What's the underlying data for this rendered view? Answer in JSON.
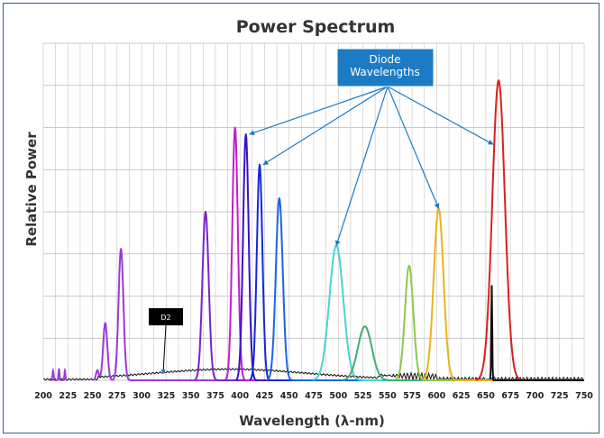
{
  "chart_data": {
    "type": "line",
    "title": "Power Spectrum",
    "xlabel": "Wavelength (λ-nm)",
    "ylabel": "Relative Power",
    "xlim": [
      200,
      750
    ],
    "ylim": [
      0,
      1
    ],
    "grid": true,
    "x_ticks": [
      200,
      225,
      250,
      275,
      300,
      325,
      350,
      375,
      400,
      425,
      450,
      475,
      500,
      525,
      550,
      575,
      600,
      625,
      650,
      675,
      700,
      725,
      750
    ],
    "annotations": {
      "callout": "Diode Wavelengths",
      "d2_label": "D2"
    },
    "series": [
      {
        "color": "#9a3ad6",
        "peaks": [
          {
            "x": 263,
            "y": 0.17,
            "w": 3
          },
          {
            "x": 279,
            "y": 0.39,
            "w": 3.5
          },
          {
            "x": 255,
            "y": 0.03,
            "w": 2
          }
        ]
      },
      {
        "color": "#7a22cc",
        "peaks": [
          {
            "x": 365,
            "y": 0.5,
            "w": 4.5
          }
        ]
      },
      {
        "color": "#c21ec9",
        "peaks": [
          {
            "x": 395,
            "y": 0.75,
            "w": 4
          }
        ]
      },
      {
        "color": "#3a10c8",
        "peaks": [
          {
            "x": 406,
            "y": 0.73,
            "w": 4
          }
        ]
      },
      {
        "color": "#1428d8",
        "peaks": [
          {
            "x": 420,
            "y": 0.64,
            "w": 4
          }
        ]
      },
      {
        "color": "#1e64e6",
        "peaks": [
          {
            "x": 440,
            "y": 0.54,
            "w": 5
          }
        ]
      },
      {
        "color": "#49d3cf",
        "peaks": [
          {
            "x": 498,
            "y": 0.4,
            "w": 10
          }
        ]
      },
      {
        "color": "#3fad74",
        "peaks": [
          {
            "x": 527,
            "y": 0.16,
            "w": 10
          }
        ]
      },
      {
        "color": "#8cc84a",
        "peaks": [
          {
            "x": 572,
            "y": 0.34,
            "w": 6
          }
        ]
      },
      {
        "color": "#e8b41a",
        "peaks": [
          {
            "x": 602,
            "y": 0.51,
            "w": 7
          }
        ]
      },
      {
        "color": "#d8201e",
        "peaks": [
          {
            "x": 663,
            "y": 0.89,
            "w": 9
          }
        ]
      },
      {
        "color": "#111111",
        "peaks": [
          {
            "x": 656,
            "y": 0.28,
            "w": 0.7
          }
        ]
      }
    ]
  }
}
